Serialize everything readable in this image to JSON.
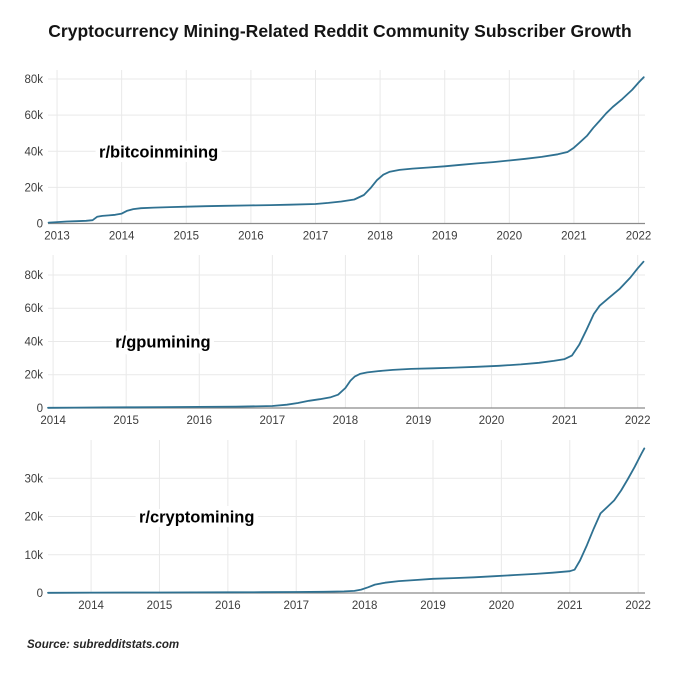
{
  "title": "Cryptocurrency Mining-Related Reddit Community Subscriber Growth",
  "source": "Source: subredditstats.com",
  "colors": {
    "line": "#2f7191",
    "grid": "#e9e9e9",
    "axis": "#8a8a8a",
    "tick_label": "#3d3d3d",
    "title": "#141414",
    "annotation": "#000000"
  },
  "chart_data": [
    {
      "type": "line",
      "series_label": "r/bitcoinmining",
      "annotation": {
        "text": "r/bitcoinmining",
        "x": 2013.65,
        "y": 40000
      },
      "xlabel": "",
      "ylabel": "",
      "grid": true,
      "legend": "none",
      "xlim": [
        2012.86,
        2022.1
      ],
      "ylim": [
        0,
        85000
      ],
      "xticks": [
        2013,
        2014,
        2015,
        2016,
        2017,
        2018,
        2019,
        2020,
        2021,
        2022
      ],
      "ytick_values": [
        0,
        20000,
        40000,
        60000,
        80000
      ],
      "ytick_labels": [
        "0",
        "20k",
        "40k",
        "60k",
        "80k"
      ],
      "points": [
        [
          2012.87,
          500
        ],
        [
          2013.0,
          800
        ],
        [
          2013.15,
          1100
        ],
        [
          2013.3,
          1300
        ],
        [
          2013.45,
          1500
        ],
        [
          2013.55,
          1800
        ],
        [
          2013.62,
          3700
        ],
        [
          2013.7,
          4200
        ],
        [
          2013.8,
          4500
        ],
        [
          2013.9,
          4800
        ],
        [
          2014.0,
          5500
        ],
        [
          2014.08,
          7000
        ],
        [
          2014.18,
          8000
        ],
        [
          2014.3,
          8500
        ],
        [
          2014.5,
          8800
        ],
        [
          2014.75,
          9100
        ],
        [
          2015.0,
          9300
        ],
        [
          2015.3,
          9600
        ],
        [
          2015.6,
          9800
        ],
        [
          2016.0,
          10000
        ],
        [
          2016.3,
          10200
        ],
        [
          2016.6,
          10400
        ],
        [
          2017.0,
          10800
        ],
        [
          2017.2,
          11400
        ],
        [
          2017.4,
          12200
        ],
        [
          2017.6,
          13300
        ],
        [
          2017.75,
          15800
        ],
        [
          2017.85,
          19500
        ],
        [
          2017.95,
          24000
        ],
        [
          2018.05,
          27000
        ],
        [
          2018.15,
          28700
        ],
        [
          2018.3,
          29700
        ],
        [
          2018.5,
          30400
        ],
        [
          2018.75,
          31000
        ],
        [
          2019.0,
          31700
        ],
        [
          2019.25,
          32500
        ],
        [
          2019.5,
          33300
        ],
        [
          2019.75,
          34000
        ],
        [
          2020.0,
          34900
        ],
        [
          2020.25,
          35800
        ],
        [
          2020.5,
          36900
        ],
        [
          2020.75,
          38300
        ],
        [
          2020.9,
          39600
        ],
        [
          2021.0,
          42000
        ],
        [
          2021.08,
          44500
        ],
        [
          2021.2,
          48500
        ],
        [
          2021.3,
          53000
        ],
        [
          2021.4,
          57000
        ],
        [
          2021.5,
          61000
        ],
        [
          2021.6,
          64500
        ],
        [
          2021.75,
          69000
        ],
        [
          2021.9,
          74000
        ],
        [
          2022.0,
          78000
        ],
        [
          2022.08,
          81000
        ]
      ]
    },
    {
      "type": "line",
      "series_label": "r/gpumining",
      "annotation": {
        "text": "r/gpumining",
        "x": 2014.85,
        "y": 40000
      },
      "xlabel": "",
      "ylabel": "",
      "grid": true,
      "legend": "none",
      "xlim": [
        2013.93,
        2022.1
      ],
      "ylim": [
        0,
        92000
      ],
      "xticks": [
        2014,
        2015,
        2016,
        2017,
        2018,
        2019,
        2020,
        2021,
        2022
      ],
      "ytick_values": [
        0,
        20000,
        40000,
        60000,
        80000
      ],
      "ytick_labels": [
        "0",
        "20k",
        "40k",
        "60k",
        "80k"
      ],
      "points": [
        [
          2013.93,
          150
        ],
        [
          2014.3,
          250
        ],
        [
          2014.7,
          350
        ],
        [
          2015.1,
          450
        ],
        [
          2015.5,
          550
        ],
        [
          2016.0,
          650
        ],
        [
          2016.5,
          800
        ],
        [
          2017.0,
          1200
        ],
        [
          2017.2,
          2000
        ],
        [
          2017.35,
          3000
        ],
        [
          2017.5,
          4300
        ],
        [
          2017.65,
          5300
        ],
        [
          2017.8,
          6500
        ],
        [
          2017.9,
          8000
        ],
        [
          2018.0,
          12000
        ],
        [
          2018.07,
          16500
        ],
        [
          2018.13,
          19000
        ],
        [
          2018.2,
          20500
        ],
        [
          2018.3,
          21400
        ],
        [
          2018.45,
          22200
        ],
        [
          2018.65,
          22900
        ],
        [
          2018.9,
          23500
        ],
        [
          2019.2,
          23900
        ],
        [
          2019.5,
          24300
        ],
        [
          2019.8,
          24800
        ],
        [
          2020.1,
          25400
        ],
        [
          2020.4,
          26200
        ],
        [
          2020.65,
          27200
        ],
        [
          2020.85,
          28300
        ],
        [
          2021.0,
          29400
        ],
        [
          2021.1,
          31500
        ],
        [
          2021.2,
          38000
        ],
        [
          2021.3,
          47000
        ],
        [
          2021.4,
          56500
        ],
        [
          2021.48,
          61500
        ],
        [
          2021.6,
          66000
        ],
        [
          2021.75,
          71500
        ],
        [
          2021.9,
          78500
        ],
        [
          2022.0,
          84000
        ],
        [
          2022.08,
          88000
        ]
      ]
    },
    {
      "type": "line",
      "series_label": "r/cryptomining",
      "annotation": {
        "text": "r/cryptomining",
        "x": 2014.7,
        "y": 20000
      },
      "xlabel": "",
      "ylabel": "",
      "grid": true,
      "legend": "none",
      "xlim": [
        2013.37,
        2022.1
      ],
      "ylim": [
        0,
        40000
      ],
      "xticks": [
        2014,
        2015,
        2016,
        2017,
        2018,
        2019,
        2020,
        2021,
        2022
      ],
      "ytick_values": [
        0,
        10000,
        20000,
        30000
      ],
      "ytick_labels": [
        "0",
        "10k",
        "20k",
        "30k"
      ],
      "points": [
        [
          2013.37,
          60
        ],
        [
          2014.0,
          100
        ],
        [
          2014.5,
          120
        ],
        [
          2015.0,
          140
        ],
        [
          2015.5,
          160
        ],
        [
          2016.0,
          190
        ],
        [
          2016.5,
          220
        ],
        [
          2017.0,
          260
        ],
        [
          2017.4,
          320
        ],
        [
          2017.7,
          420
        ],
        [
          2017.85,
          550
        ],
        [
          2017.95,
          900
        ],
        [
          2018.05,
          1500
        ],
        [
          2018.15,
          2200
        ],
        [
          2018.3,
          2700
        ],
        [
          2018.5,
          3100
        ],
        [
          2018.75,
          3400
        ],
        [
          2019.0,
          3700
        ],
        [
          2019.3,
          3900
        ],
        [
          2019.6,
          4100
        ],
        [
          2019.9,
          4400
        ],
        [
          2020.2,
          4700
        ],
        [
          2020.5,
          5000
        ],
        [
          2020.75,
          5300
        ],
        [
          2021.0,
          5700
        ],
        [
          2021.07,
          6100
        ],
        [
          2021.15,
          8500
        ],
        [
          2021.25,
          12500
        ],
        [
          2021.35,
          16800
        ],
        [
          2021.45,
          20800
        ],
        [
          2021.55,
          22500
        ],
        [
          2021.65,
          24200
        ],
        [
          2021.75,
          26800
        ],
        [
          2021.85,
          29800
        ],
        [
          2021.95,
          33000
        ],
        [
          2022.05,
          36500
        ],
        [
          2022.09,
          37800
        ]
      ]
    }
  ]
}
